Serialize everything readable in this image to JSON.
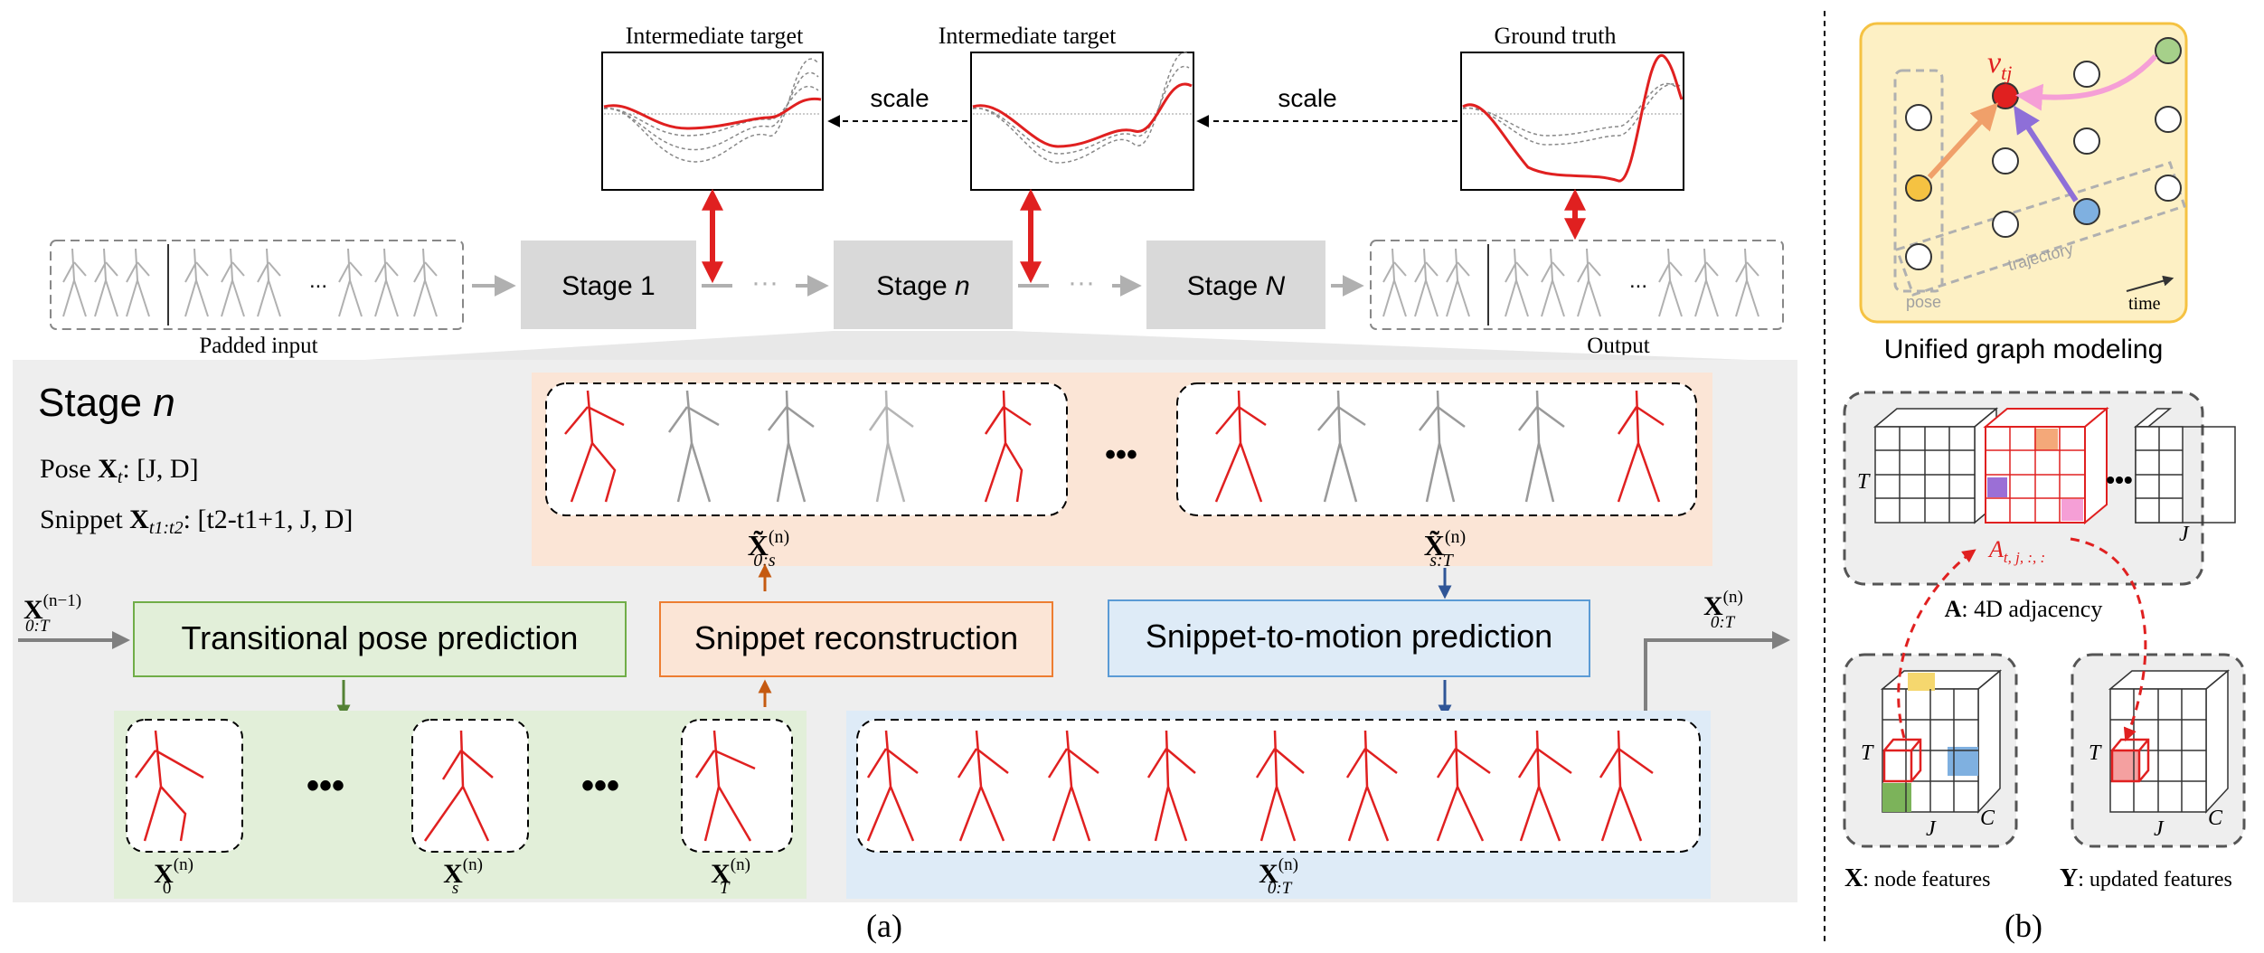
{
  "top": {
    "plots": [
      {
        "title": "Intermediate target"
      },
      {
        "title": "Intermediate target"
      },
      {
        "title": "Ground truth"
      }
    ],
    "scale_labels": [
      "scale",
      "scale"
    ],
    "pipeline": {
      "padded_input": "Padded input",
      "output": "Output",
      "stage1": "Stage 1",
      "stage_n_prefix": "Stage ",
      "stage_n_var": "n",
      "stage_N_prefix": "Stage ",
      "stage_N_var": "N",
      "dots": "···",
      "ellipsis": "..."
    }
  },
  "stage_panel": {
    "title_prefix": "Stage ",
    "title_var": "n",
    "pose_label": "Pose ",
    "pose_sym": "X",
    "pose_sub": "t",
    "pose_dims": ": [J, D]",
    "snippet_label": "Snippet ",
    "snippet_sym": "X",
    "snippet_sub": "t1:t2",
    "snippet_dims": ": [t2-t1+1, J, D]",
    "input_label": "X",
    "input_sub": "0:T",
    "input_sup": "(n−1)",
    "output_label": "X",
    "output_sub": "0:T",
    "output_sup": "(n)",
    "boxes": {
      "transitional": "Transitional pose prediction",
      "reconstruction": "Snippet reconstruction",
      "snippet_motion": "Snippet-to-motion prediction"
    },
    "snippet_labels": {
      "left": {
        "sym": "X̃",
        "sub": "0:s",
        "sup": "(n)"
      },
      "right": {
        "sym": "X̃",
        "sub": "s:T",
        "sup": "(n)"
      }
    },
    "pose_labels": [
      {
        "sym": "X",
        "sub": "0",
        "sup": "(n)"
      },
      {
        "sym": "X",
        "sub": "s",
        "sup": "(n)"
      },
      {
        "sym": "X",
        "sub": "T",
        "sup": "(n)"
      },
      {
        "sym": "X",
        "sub": "0:T",
        "sup": "(n)"
      }
    ],
    "dots": "•••",
    "caption": "(a)"
  },
  "panel_b": {
    "node_label": "v",
    "node_sub": "tj",
    "pose_tag": "pose",
    "trajectory_tag": "trajectory",
    "time_tag": "time",
    "title": "Unified graph modeling",
    "adjacency_T": "T",
    "adjacency_J": "J",
    "adjacency_A": "A",
    "adjacency_A_sub": "t, j, :, :",
    "adjacency_caption_sym": "A",
    "adjacency_caption": ": 4D adjacency",
    "node_features_sym": "X",
    "node_features": ": node features",
    "updated_features_sym": "Y",
    "updated_features": ": updated features",
    "cube_T": "T",
    "cube_J": "J",
    "cube_C": "C",
    "dots": "•••",
    "caption": "(b)"
  },
  "colors": {
    "red": "#e02020",
    "green_fill": "#e2efd9",
    "green_stroke": "#70ad47",
    "orange_fill": "#fbe5d6",
    "orange_stroke": "#ed7d31",
    "blue_fill": "#deebf7",
    "blue_stroke": "#5b9bd5",
    "panel_bg": "#eeeeee",
    "stage_box": "#d9d9d9",
    "graph_bg": "#fdf0c4",
    "graph_stroke": "#f5c242"
  }
}
